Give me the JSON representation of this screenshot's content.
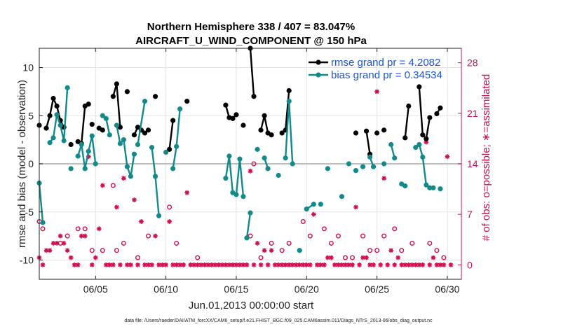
{
  "chart_data": {
    "type": "line",
    "title_line1": "Northern Hemisphere 338 / 407 = 83.047%",
    "title_line2": "AIRCRAFT_U_WIND_COMPONENT @ 150 hPa",
    "xlabel": "Jun.01,2013 00:00:00 start",
    "ylabel": "rmse and bias (model - observation)",
    "ylabel_right": "# of obs: o=possible; ∗=assimilated",
    "footer": "data file: /Users/raeder/DAI/ATM_forcXX/CAM6_setup/f.e21.FHIST_BGC.f09_025.CAM6assim.011/Diags_NTrS_2013-06/obs_diag_output.nc",
    "xlim": [
      1,
      31
    ],
    "ylim": [
      -12,
      12
    ],
    "ylim_right": [
      -2,
      30
    ],
    "x_ticks": [
      5,
      10,
      15,
      20,
      25,
      30
    ],
    "x_tick_labels": [
      "06/05",
      "06/10",
      "06/15",
      "06/20",
      "06/25",
      "06/30"
    ],
    "y_ticks": [
      -10,
      -5,
      0,
      5,
      10
    ],
    "y_tick_labels": [
      "-10",
      "-5",
      "0",
      "5",
      "10"
    ],
    "y_ticks_right": [
      0,
      7,
      14,
      21,
      28
    ],
    "y_tick_labels_right": [
      "0",
      "7",
      "14",
      "21",
      "28"
    ],
    "zero_line": 0,
    "colors": {
      "rmse": "#000000",
      "bias": "#138a8a",
      "obs": "#d0104e",
      "legend_text": "#1a55d6",
      "zero": "#bdbdbd"
    },
    "series": [
      {
        "name": "rmse grand pr = 4.2082",
        "segments": [
          [
            [
              1.0,
              4.0
            ]
          ],
          [
            [
              1.5,
              3.7
            ],
            [
              1.75,
              5.0
            ],
            [
              2.0,
              6.8
            ],
            [
              2.25,
              6.0
            ],
            [
              2.5,
              4.5
            ],
            [
              2.75,
              3.8
            ]
          ],
          [
            [
              3.25,
              2.0
            ]
          ],
          [
            [
              3.75,
              2.3
            ],
            [
              4.0,
              2.1
            ],
            [
              4.25,
              6.0
            ],
            [
              4.5,
              6.2
            ]
          ],
          [
            [
              4.75,
              4.1
            ]
          ],
          [
            [
              5.25,
              3.7
            ],
            [
              5.5,
              3.5
            ]
          ],
          [
            [
              6.25,
              7.0
            ],
            [
              6.5,
              8.3
            ],
            [
              6.75,
              3.8
            ]
          ],
          [
            [
              7.25,
              7.5
            ]
          ],
          [
            [
              7.75,
              3.0
            ],
            [
              8.0,
              3.8
            ],
            [
              8.25,
              3.5
            ],
            [
              8.5,
              3.2
            ],
            [
              8.75,
              3.5
            ]
          ],
          [
            [
              9.25,
              7.0
            ]
          ],
          [
            [
              10.25,
              1.5
            ],
            [
              10.5,
              4.5
            ]
          ],
          [
            [
              11.5,
              6.5
            ]
          ],
          [
            [
              14.25,
              6.1
            ],
            [
              14.5,
              4.8
            ],
            [
              14.75,
              4.7
            ],
            [
              15.0,
              5.1
            ]
          ],
          [
            [
              15.5,
              4.0
            ]
          ],
          [
            [
              16.0,
              12.0
            ],
            [
              16.25,
              7.0
            ]
          ],
          [
            [
              16.75,
              3.5
            ],
            [
              17.0,
              5.0
            ],
            [
              17.25,
              3.2
            ],
            [
              17.5,
              3.0
            ]
          ],
          [
            [
              18.25,
              3.2
            ],
            [
              18.5,
              3.5
            ],
            [
              18.75,
              7.6
            ]
          ],
          [
            [
              23.5,
              3.2
            ]
          ],
          [
            [
              24.25,
              3.4
            ],
            [
              24.5,
              1.0
            ]
          ],
          [
            [
              25.0,
              3.2
            ]
          ],
          [
            [
              25.5,
              3.5
            ]
          ],
          [
            [
              27.0,
              2.7
            ],
            [
              27.25,
              6.0
            ]
          ],
          [
            [
              28.0,
              8.0
            ],
            [
              28.25,
              3.0
            ],
            [
              28.5,
              2.6
            ],
            [
              28.75,
              4.8
            ]
          ],
          [
            [
              29.25,
              5.2
            ],
            [
              29.5,
              5.8
            ]
          ]
        ]
      },
      {
        "name": "bias grand pr = 0.34534",
        "segments": [
          [
            [
              1.0,
              -2.0
            ],
            [
              1.25,
              -6.1
            ]
          ],
          [
            [
              1.75,
              2.2
            ],
            [
              2.0,
              2.7
            ],
            [
              2.25,
              5.1
            ],
            [
              2.5,
              4.0
            ],
            [
              2.75,
              2.4
            ],
            [
              3.0,
              7.9
            ]
          ],
          [
            [
              3.25,
              -0.5
            ]
          ],
          [
            [
              3.75,
              0.8
            ],
            [
              4.0,
              2.0
            ],
            [
              4.25,
              -0.5
            ],
            [
              4.5,
              1.3
            ],
            [
              4.75,
              2.9
            ],
            [
              5.0,
              0.0
            ]
          ],
          [
            [
              5.5,
              5.0
            ],
            [
              5.75,
              4.7
            ],
            [
              6.0,
              3.0
            ]
          ],
          [
            [
              6.5,
              4.0
            ],
            [
              6.75,
              2.1
            ],
            [
              7.0,
              2.5
            ],
            [
              7.25,
              -0.3
            ],
            [
              7.5,
              -1.3
            ],
            [
              7.75,
              1.0
            ]
          ],
          [
            [
              8.0,
              2.0
            ],
            [
              8.5,
              6.5
            ]
          ],
          [
            [
              9.0,
              1.7
            ],
            [
              9.25,
              -1.3
            ],
            [
              9.5,
              -5.4
            ]
          ],
          [
            [
              10.0,
              1.2
            ]
          ],
          [
            [
              10.5,
              -0.5
            ],
            [
              10.75,
              1.8
            ],
            [
              11.0,
              5.7
            ]
          ],
          [
            [
              14.25,
              -1.5
            ],
            [
              14.5,
              0.8
            ],
            [
              14.75,
              -3.0
            ],
            [
              15.0,
              -3.2
            ],
            [
              15.25,
              0.5
            ],
            [
              15.5,
              -3.4
            ]
          ],
          [
            [
              15.75,
              -7.7
            ],
            [
              16.0,
              -5.1
            ]
          ],
          [
            [
              16.5,
              1.5
            ]
          ],
          [
            [
              17.0,
              0.6
            ],
            [
              17.25,
              -0.5
            ]
          ],
          [
            [
              18.0,
              -1.2
            ]
          ],
          [
            [
              18.5,
              0.6
            ],
            [
              18.75,
              6.5
            ],
            [
              19.0,
              0.0
            ]
          ],
          [
            [
              19.5,
              -9.0
            ]
          ],
          [
            [
              20.0,
              -4.7
            ],
            [
              20.5,
              -4.2
            ]
          ],
          [
            [
              21.0,
              -4.2
            ]
          ],
          [
            [
              21.5,
              -0.5
            ]
          ],
          [
            [
              22.5,
              -3.4
            ]
          ],
          [
            [
              23.0,
              0.0
            ]
          ],
          [
            [
              23.5,
              -0.7
            ]
          ],
          [
            [
              24.0,
              -0.3
            ]
          ],
          [
            [
              24.5,
              0.7
            ],
            [
              24.75,
              -0.3
            ]
          ],
          [
            [
              25.5,
              0.0
            ]
          ],
          [
            [
              26.0,
              2.0
            ],
            [
              26.25,
              0.6
            ]
          ],
          [
            [
              26.75,
              -2.1
            ],
            [
              27.0,
              -2.3
            ]
          ],
          [
            [
              27.75,
              1.7
            ],
            [
              28.0,
              2.0
            ],
            [
              28.25,
              0.7
            ],
            [
              28.5,
              -2.2
            ],
            [
              28.75,
              -2.5
            ]
          ],
          [
            [
              29.0,
              -2.5
            ]
          ],
          [
            [
              29.5,
              -2.6
            ]
          ]
        ]
      }
    ],
    "obs_possible": [
      [
        1.0,
        6
      ],
      [
        1.25,
        5
      ],
      [
        2.5,
        3
      ],
      [
        3.0,
        4
      ],
      [
        3.75,
        5
      ],
      [
        4.25,
        5
      ],
      [
        4.75,
        2
      ],
      [
        5.5,
        2
      ],
      [
        6.25,
        11
      ],
      [
        6.5,
        2
      ],
      [
        7.0,
        3
      ],
      [
        8.0,
        1
      ],
      [
        8.75,
        4
      ],
      [
        10.25,
        8
      ],
      [
        10.75,
        3
      ],
      [
        12.25,
        1
      ],
      [
        16.0,
        4
      ],
      [
        16.25,
        14
      ],
      [
        16.75,
        1
      ],
      [
        17.5,
        3
      ],
      [
        18.25,
        2
      ],
      [
        18.75,
        3
      ],
      [
        19.75,
        6
      ],
      [
        20.25,
        4
      ],
      [
        21.25,
        5
      ],
      [
        21.75,
        3
      ],
      [
        22.25,
        4
      ],
      [
        22.75,
        1
      ],
      [
        23.25,
        1
      ],
      [
        24.0,
        4
      ],
      [
        24.5,
        2
      ],
      [
        25.0,
        2
      ],
      [
        25.5,
        4
      ],
      [
        26.25,
        5
      ],
      [
        26.75,
        2
      ],
      [
        27.5,
        3
      ],
      [
        28.75,
        3
      ],
      [
        29.25,
        2
      ],
      [
        29.75,
        1
      ]
    ],
    "obs_assimilated": [
      [
        1.0,
        1
      ],
      [
        1.25,
        0
      ],
      [
        1.5,
        2
      ],
      [
        1.75,
        2
      ],
      [
        2.0,
        3
      ],
      [
        2.25,
        3
      ],
      [
        2.5,
        4
      ],
      [
        2.75,
        3
      ],
      [
        3.0,
        2
      ],
      [
        3.25,
        1
      ],
      [
        3.5,
        0
      ],
      [
        3.75,
        0
      ],
      [
        4.0,
        4
      ],
      [
        4.25,
        4
      ],
      [
        4.5,
        15
      ],
      [
        4.75,
        0
      ],
      [
        5.0,
        1
      ],
      [
        5.25,
        5
      ],
      [
        5.5,
        11
      ],
      [
        5.75,
        0
      ],
      [
        6.0,
        0
      ],
      [
        6.25,
        0
      ],
      [
        6.5,
        8
      ],
      [
        6.75,
        0
      ],
      [
        7.0,
        12
      ],
      [
        7.25,
        0
      ],
      [
        7.5,
        0
      ],
      [
        7.75,
        9
      ],
      [
        8.0,
        0
      ],
      [
        8.25,
        6
      ],
      [
        8.5,
        0
      ],
      [
        8.75,
        0
      ],
      [
        9.0,
        0
      ],
      [
        9.25,
        4
      ],
      [
        9.5,
        0
      ],
      [
        9.75,
        0
      ],
      [
        10.0,
        0
      ],
      [
        10.25,
        6
      ],
      [
        10.5,
        0
      ],
      [
        10.75,
        0
      ],
      [
        11.0,
        0
      ],
      [
        11.25,
        0
      ],
      [
        11.5,
        10
      ],
      [
        11.75,
        0
      ],
      [
        12.0,
        0
      ],
      [
        12.25,
        0
      ],
      [
        12.5,
        0
      ],
      [
        12.75,
        0
      ],
      [
        13.0,
        0
      ],
      [
        13.25,
        0
      ],
      [
        13.5,
        0
      ],
      [
        13.75,
        0
      ],
      [
        14.0,
        0
      ],
      [
        14.25,
        0
      ],
      [
        14.5,
        0
      ],
      [
        14.75,
        0
      ],
      [
        15.0,
        0
      ],
      [
        15.25,
        0
      ],
      [
        15.5,
        0
      ],
      [
        15.75,
        0
      ],
      [
        16.0,
        13
      ],
      [
        16.25,
        0
      ],
      [
        16.5,
        3
      ],
      [
        16.75,
        0
      ],
      [
        17.0,
        2
      ],
      [
        17.25,
        0
      ],
      [
        17.5,
        2
      ],
      [
        17.75,
        0
      ],
      [
        18.0,
        0
      ],
      [
        18.25,
        0
      ],
      [
        18.5,
        0
      ],
      [
        18.75,
        0
      ],
      [
        19.0,
        0
      ],
      [
        19.25,
        0
      ],
      [
        19.5,
        0
      ],
      [
        19.75,
        0
      ],
      [
        20.0,
        0
      ],
      [
        20.25,
        0
      ],
      [
        20.5,
        7
      ],
      [
        20.75,
        0
      ],
      [
        21.0,
        0
      ],
      [
        21.25,
        0
      ],
      [
        21.5,
        1
      ],
      [
        21.75,
        1
      ],
      [
        22.0,
        0
      ],
      [
        22.25,
        0
      ],
      [
        22.5,
        0
      ],
      [
        22.75,
        0
      ],
      [
        23.0,
        0
      ],
      [
        23.25,
        0
      ],
      [
        23.5,
        8
      ],
      [
        23.75,
        0
      ],
      [
        24.0,
        1
      ],
      [
        24.25,
        1
      ],
      [
        24.5,
        0
      ],
      [
        24.75,
        0
      ],
      [
        25.0,
        24
      ],
      [
        25.25,
        0
      ],
      [
        25.5,
        12
      ],
      [
        25.75,
        0
      ],
      [
        26.0,
        2
      ],
      [
        26.25,
        0
      ],
      [
        26.5,
        1
      ],
      [
        26.75,
        0
      ],
      [
        27.0,
        0
      ],
      [
        27.25,
        0
      ],
      [
        27.5,
        0
      ],
      [
        27.75,
        0
      ],
      [
        28.0,
        0
      ],
      [
        28.25,
        0
      ],
      [
        28.5,
        17
      ],
      [
        28.75,
        0
      ],
      [
        29.0,
        1
      ],
      [
        29.25,
        0
      ],
      [
        29.5,
        0
      ],
      [
        29.75,
        0
      ],
      [
        30.0,
        15
      ],
      [
        30.25,
        0
      ]
    ]
  }
}
